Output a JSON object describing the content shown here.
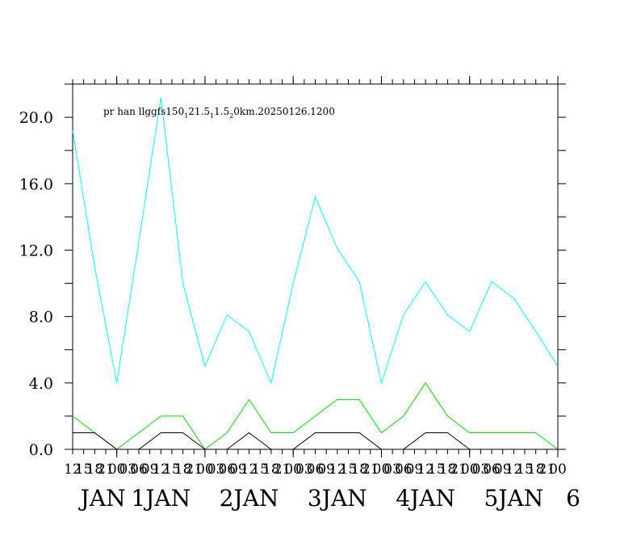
{
  "chart_data": {
    "type": "line",
    "title": "pr han llggfs150",
    "title_parts": [
      {
        "t": "pr han llggfs150"
      },
      {
        "t": "1",
        "sub": true
      },
      {
        "t": "21.5"
      },
      {
        "t": "1",
        "sub": true
      },
      {
        "t": "1.5"
      },
      {
        "t": "2",
        "sub": true
      },
      {
        "t": "0km.20250126.1200"
      }
    ],
    "xlabel": "",
    "ylabel": "",
    "ylim": [
      0,
      22
    ],
    "y_ticks": [
      "0.0",
      "4.0",
      "8.0",
      "12.0",
      "16.0",
      "20.0"
    ],
    "y_tick_values": [
      0,
      4,
      8,
      12,
      16,
      20
    ],
    "x_date_labels": [
      "JAN",
      "1JAN",
      "2JAN",
      "3JAN",
      "4JAN",
      "5JAN",
      "6"
    ],
    "x_hour_labels": [
      "00",
      "03",
      "06",
      "09",
      "12",
      "15",
      "18",
      "21"
    ],
    "x": [
      "2025-01-26 12:00",
      "2025-01-26 18:00",
      "2025-01-27 00:00",
      "2025-01-27 06:00",
      "2025-01-27 12:00",
      "2025-01-27 18:00",
      "2025-01-28 00:00",
      "2025-01-28 06:00",
      "2025-01-28 12:00",
      "2025-01-28 18:00",
      "2025-01-29 00:00",
      "2025-01-29 06:00",
      "2025-01-29 12:00",
      "2025-01-29 18:00",
      "2025-01-30 00:00",
      "2025-01-30 06:00",
      "2025-01-30 12:00",
      "2025-01-30 18:00",
      "2025-01-31 00:00",
      "2025-01-31 06:00",
      "2025-01-31 12:00",
      "2025-01-31 18:00",
      "2025-02-01 00:00"
    ],
    "series": [
      {
        "color": "#00ffff",
        "values": [
          19.2,
          11.0,
          4.0,
          12.5,
          21.2,
          10.0,
          5.0,
          8.1,
          7.1,
          4.0,
          10.0,
          15.2,
          12.1,
          10.1,
          4.0,
          8.1,
          10.1,
          8.1,
          7.1,
          10.1,
          9.1,
          7.1,
          5.0
        ]
      },
      {
        "color": "#00dd00",
        "values": [
          2.0,
          1.0,
          0.0,
          1.0,
          2.0,
          2.0,
          0.0,
          1.0,
          3.0,
          1.0,
          1.0,
          2.0,
          3.0,
          3.0,
          1.0,
          2.0,
          4.0,
          2.0,
          1.0,
          1.0,
          1.0,
          1.0,
          0.0
        ]
      },
      {
        "color": "#000000",
        "values": [
          1.0,
          1.0,
          0.0,
          0.0,
          1.0,
          1.0,
          0.0,
          0.0,
          1.0,
          0.0,
          0.0,
          1.0,
          1.0,
          1.0,
          0.0,
          0.0,
          1.0,
          1.0,
          0.0,
          0.0,
          0.0,
          0.0,
          0.0
        ]
      }
    ],
    "grid": false,
    "legend": "none"
  }
}
